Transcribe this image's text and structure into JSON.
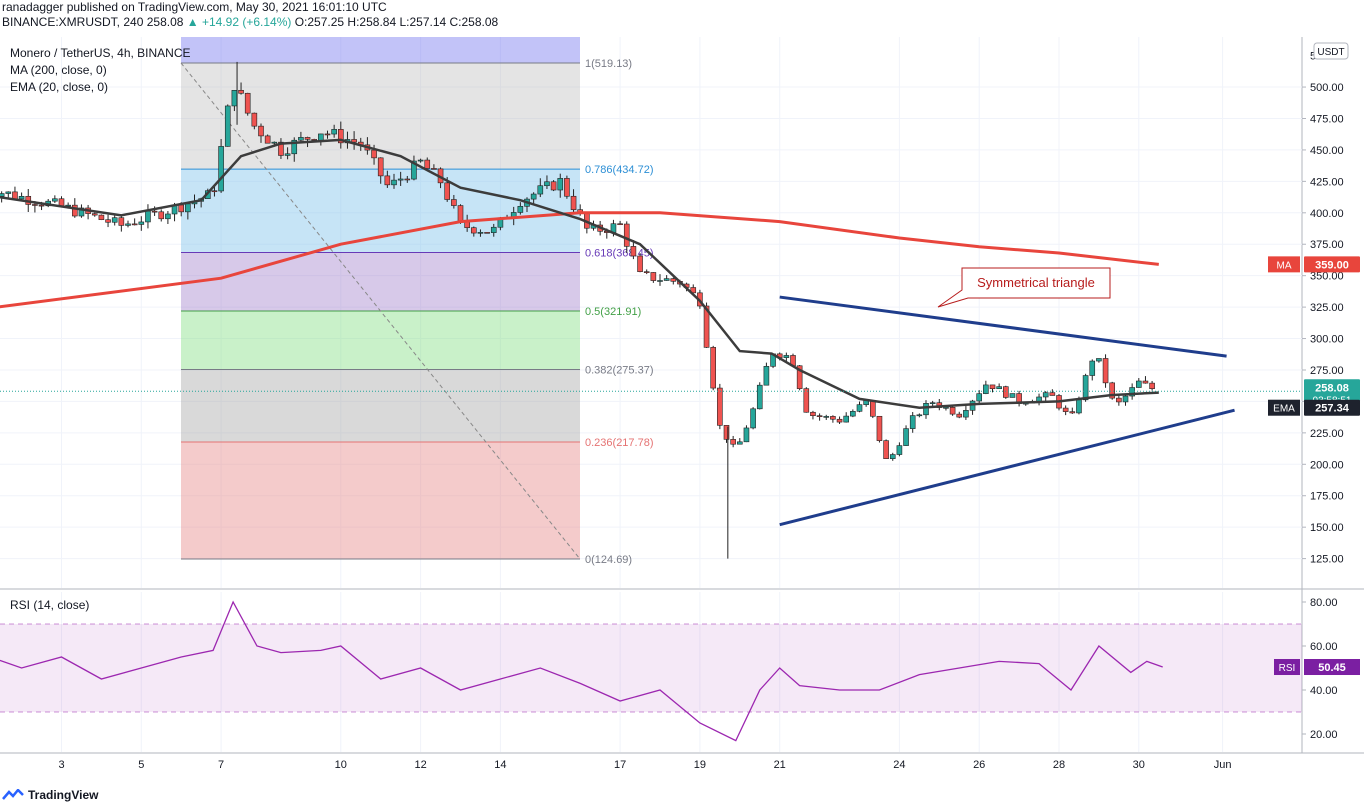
{
  "header": {
    "publisher_line": "ranadagger published on TradingView.com, May 30, 2021 16:01:10 UTC",
    "symbol": "BINANCE:XMRUSDT, 240",
    "last": "258.08",
    "change": "▲ +14.92 (+6.14%)",
    "ohlc": "O:257.25 H:258.84 L:257.14 C:258.08"
  },
  "legend": {
    "title": "Monero / TetherUS, 4h, BINANCE",
    "ma": "MA (200, close, 0)",
    "ema": "EMA (20, close, 0)",
    "rsi": "RSI (14, close)"
  },
  "currency_badge": "USDT",
  "annotation": "Symmetrical triangle",
  "footer": "TradingView",
  "colors": {
    "up": "#26a69a",
    "down": "#ef5350",
    "ma": "#e8453c",
    "ema": "#3c3c3c",
    "trend": "#1f3d8c",
    "rsi": "#9c27b0"
  },
  "chart_data": [
    {
      "type": "candlestick",
      "title": "Monero / TetherUS, 4h, BINANCE",
      "x_tick_labels": [
        "3",
        "5",
        "7",
        "10",
        "12",
        "14",
        "17",
        "19",
        "21",
        "24",
        "26",
        "28",
        "30",
        "Jun"
      ],
      "y_tick_labels": [
        "125.00",
        "150.00",
        "175.00",
        "200.00",
        "225.00",
        "250.00",
        "275.00",
        "300.00",
        "325.00",
        "350.00",
        "375.00",
        "400.00",
        "425.00",
        "450.00",
        "475.00",
        "500.00"
      ],
      "ylim": [
        110,
        560
      ],
      "close_path_approx": [
        [
          1.0,
          420
        ],
        [
          3.0,
          405
        ],
        [
          4.5,
          390
        ],
        [
          5.5,
          400
        ],
        [
          6.8,
          415
        ],
        [
          7.3,
          505
        ],
        [
          7.8,
          470
        ],
        [
          8.5,
          450
        ],
        [
          9.5,
          465
        ],
        [
          10.5,
          455
        ],
        [
          11.2,
          420
        ],
        [
          12.0,
          440
        ],
        [
          12.5,
          425
        ],
        [
          13.0,
          390
        ],
        [
          13.8,
          385
        ],
        [
          14.5,
          410
        ],
        [
          15.5,
          425
        ],
        [
          16.2,
          385
        ],
        [
          17.0,
          390
        ],
        [
          17.5,
          350
        ],
        [
          18.5,
          345
        ],
        [
          19.0,
          330
        ],
        [
          19.5,
          230
        ],
        [
          19.9,
          210
        ],
        [
          20.3,
          240
        ],
        [
          20.8,
          290
        ],
        [
          21.3,
          285
        ],
        [
          21.7,
          240
        ],
        [
          22.5,
          235
        ],
        [
          23.2,
          250
        ],
        [
          23.7,
          200
        ],
        [
          24.3,
          235
        ],
        [
          24.8,
          250
        ],
        [
          25.5,
          240
        ],
        [
          26.2,
          265
        ],
        [
          27.0,
          250
        ],
        [
          27.8,
          255
        ],
        [
          28.3,
          235
        ],
        [
          28.9,
          290
        ],
        [
          29.4,
          245
        ],
        [
          30.0,
          265
        ],
        [
          30.5,
          258
        ]
      ],
      "ohlc_last": {
        "open": 257.25,
        "high": 258.84,
        "low": 257.14,
        "close": 258.08
      },
      "series": [
        {
          "name": "MA (200, close, 0)",
          "points": [
            [
              0.9,
              323
            ],
            [
              7.0,
              348
            ],
            [
              10.0,
              375
            ],
            [
              13.0,
              393
            ],
            [
              16.0,
              400
            ],
            [
              18.0,
              400
            ],
            [
              21.0,
              393
            ],
            [
              24.0,
              380
            ],
            [
              26.0,
              373
            ],
            [
              28.0,
              368
            ],
            [
              30.5,
              359
            ]
          ]
        },
        {
          "name": "EMA (20, close, 0)",
          "points": [
            [
              0.9,
              415
            ],
            [
              4.5,
              398
            ],
            [
              6.5,
              410
            ],
            [
              7.5,
              445
            ],
            [
              8.5,
              455
            ],
            [
              10.0,
              458
            ],
            [
              11.5,
              445
            ],
            [
              13.0,
              420
            ],
            [
              14.5,
              410
            ],
            [
              16.0,
              395
            ],
            [
              17.5,
              375
            ],
            [
              19.0,
              330
            ],
            [
              20.0,
              290
            ],
            [
              20.8,
              288
            ],
            [
              21.5,
              275
            ],
            [
              23.0,
              252
            ],
            [
              24.5,
              245
            ],
            [
              26.0,
              248
            ],
            [
              28.0,
              250
            ],
            [
              29.3,
              255
            ],
            [
              30.5,
              257
            ]
          ]
        }
      ],
      "price_badges": [
        {
          "label": "MA",
          "value": "359.00"
        },
        {
          "label": "",
          "value": "258.08",
          "sub": "03:58:51"
        },
        {
          "label": "EMA",
          "value": "257.34"
        }
      ],
      "fibonacci": [
        {
          "level": "1",
          "label": "1(519.13)",
          "price": 519.13
        },
        {
          "level": "0.786",
          "label": "0.786(434.72)",
          "price": 434.72
        },
        {
          "level": "0.618",
          "label": "0.618(368.45)",
          "price": 368.45
        },
        {
          "level": "0.5",
          "label": "0.5(321.91)",
          "price": 321.91
        },
        {
          "level": "0.382",
          "label": "0.382(275.37)",
          "price": 275.37
        },
        {
          "level": "0.236",
          "label": "0.236(217.78)",
          "price": 217.78
        },
        {
          "level": "0",
          "label": "0(124.69)",
          "price": 124.69
        }
      ],
      "trendlines": [
        {
          "name": "upper",
          "from": [
            21.0,
            333
          ],
          "to": [
            32.2,
            286
          ]
        },
        {
          "name": "lower",
          "from": [
            21.0,
            152
          ],
          "to": [
            32.4,
            243
          ]
        }
      ],
      "annotations": [
        "Symmetrical triangle"
      ]
    },
    {
      "type": "line",
      "title": "RSI (14, close)",
      "ylim": [
        15,
        85
      ],
      "y_tick_labels": [
        "20.00",
        "40.00",
        "60.00",
        "80.00"
      ],
      "band": [
        30,
        70
      ],
      "series": [
        {
          "name": "RSI (14, close)",
          "points": [
            [
              0.9,
              57
            ],
            [
              2.0,
              50
            ],
            [
              3.0,
              55
            ],
            [
              4.0,
              45
            ],
            [
              5.0,
              50
            ],
            [
              6.0,
              55
            ],
            [
              6.8,
              58
            ],
            [
              7.3,
              80
            ],
            [
              7.9,
              60
            ],
            [
              8.5,
              57
            ],
            [
              9.5,
              58
            ],
            [
              10.0,
              60
            ],
            [
              11.0,
              45
            ],
            [
              12.0,
              50
            ],
            [
              13.0,
              40
            ],
            [
              14.0,
              45
            ],
            [
              15.0,
              50
            ],
            [
              16.0,
              43
            ],
            [
              17.0,
              35
            ],
            [
              18.0,
              40
            ],
            [
              19.0,
              25
            ],
            [
              19.9,
              17
            ],
            [
              20.5,
              40
            ],
            [
              21.0,
              50
            ],
            [
              21.5,
              42
            ],
            [
              22.5,
              40
            ],
            [
              23.5,
              40
            ],
            [
              24.5,
              47
            ],
            [
              25.5,
              50
            ],
            [
              26.5,
              53
            ],
            [
              27.5,
              52
            ],
            [
              28.3,
              40
            ],
            [
              29.0,
              60
            ],
            [
              29.8,
              48
            ],
            [
              30.2,
              53
            ],
            [
              30.6,
              50.45
            ]
          ]
        }
      ],
      "value_badge": {
        "label": "RSI",
        "value": "50.45"
      }
    }
  ]
}
